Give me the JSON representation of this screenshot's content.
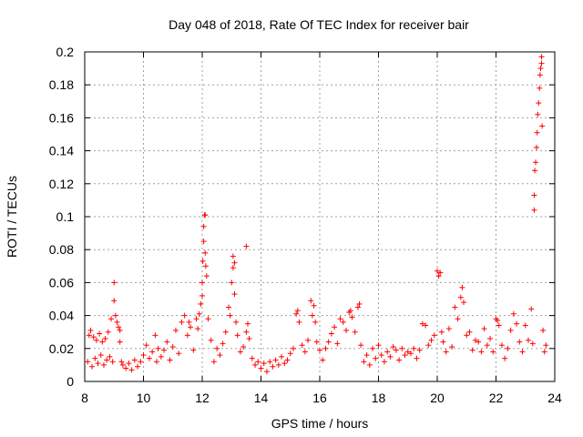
{
  "chart_data": {
    "type": "scatter",
    "title": "Day 048 of 2018, Rate Of TEC Index for receiver bair",
    "xlabel": "GPS time / hours",
    "ylabel": "ROTI / TECUs",
    "xlim": [
      8,
      24
    ],
    "ylim": [
      0,
      0.2
    ],
    "xticks": [
      "8",
      "10",
      "12",
      "14",
      "16",
      "18",
      "20",
      "22",
      "24"
    ],
    "yticks": [
      "0",
      "0.02",
      "0.04",
      "0.06",
      "0.08",
      "0.1",
      "0.12",
      "0.14",
      "0.16",
      "0.18",
      "0.2"
    ],
    "grid": true,
    "marker": "+",
    "color": "#ff0000",
    "series": [
      {
        "name": "ROTI",
        "points": [
          [
            8.1,
            0.012
          ],
          [
            8.15,
            0.028
          ],
          [
            8.2,
            0.031
          ],
          [
            8.25,
            0.009
          ],
          [
            8.3,
            0.027
          ],
          [
            8.35,
            0.014
          ],
          [
            8.4,
            0.025
          ],
          [
            8.45,
            0.011
          ],
          [
            8.5,
            0.029
          ],
          [
            8.55,
            0.016
          ],
          [
            8.6,
            0.024
          ],
          [
            8.65,
            0.01
          ],
          [
            8.7,
            0.026
          ],
          [
            8.75,
            0.013
          ],
          [
            8.8,
            0.03
          ],
          [
            8.85,
            0.015
          ],
          [
            8.9,
            0.038
          ],
          [
            8.95,
            0.012
          ],
          [
            9.0,
            0.06
          ],
          [
            9.0,
            0.049
          ],
          [
            9.05,
            0.04
          ],
          [
            9.1,
            0.036
          ],
          [
            9.15,
            0.033
          ],
          [
            9.2,
            0.031
          ],
          [
            9.2,
            0.024
          ],
          [
            9.25,
            0.012
          ],
          [
            9.3,
            0.01
          ],
          [
            9.4,
            0.008
          ],
          [
            9.5,
            0.011
          ],
          [
            9.6,
            0.007
          ],
          [
            9.7,
            0.013
          ],
          [
            9.8,
            0.009
          ],
          [
            9.9,
            0.012
          ],
          [
            10.0,
            0.016
          ],
          [
            10.1,
            0.022
          ],
          [
            10.2,
            0.014
          ],
          [
            10.3,
            0.018
          ],
          [
            10.4,
            0.028
          ],
          [
            10.45,
            0.012
          ],
          [
            10.5,
            0.02
          ],
          [
            10.6,
            0.015
          ],
          [
            10.7,
            0.019
          ],
          [
            10.8,
            0.024
          ],
          [
            10.9,
            0.013
          ],
          [
            11.0,
            0.021
          ],
          [
            11.1,
            0.031
          ],
          [
            11.2,
            0.017
          ],
          [
            11.3,
            0.036
          ],
          [
            11.4,
            0.04
          ],
          [
            11.5,
            0.028
          ],
          [
            11.55,
            0.036
          ],
          [
            11.6,
            0.033
          ],
          [
            11.7,
            0.019
          ],
          [
            11.8,
            0.038
          ],
          [
            11.85,
            0.032
          ],
          [
            11.9,
            0.041
          ],
          [
            11.95,
            0.047
          ],
          [
            12.0,
            0.052
          ],
          [
            12.0,
            0.06
          ],
          [
            12.02,
            0.073
          ],
          [
            12.05,
            0.085
          ],
          [
            12.05,
            0.094
          ],
          [
            12.08,
            0.101
          ],
          [
            12.1,
            0.101
          ],
          [
            12.1,
            0.078
          ],
          [
            12.12,
            0.07
          ],
          [
            12.15,
            0.064
          ],
          [
            12.2,
            0.038
          ],
          [
            12.3,
            0.025
          ],
          [
            12.4,
            0.012
          ],
          [
            12.5,
            0.02
          ],
          [
            12.6,
            0.016
          ],
          [
            12.7,
            0.023
          ],
          [
            12.8,
            0.03
          ],
          [
            12.9,
            0.045
          ],
          [
            12.95,
            0.04
          ],
          [
            13.0,
            0.06
          ],
          [
            13.05,
            0.069
          ],
          [
            13.05,
            0.076
          ],
          [
            13.1,
            0.072
          ],
          [
            13.1,
            0.053
          ],
          [
            13.15,
            0.036
          ],
          [
            13.2,
            0.028
          ],
          [
            13.3,
            0.018
          ],
          [
            13.4,
            0.021
          ],
          [
            13.5,
            0.03
          ],
          [
            13.5,
            0.082
          ],
          [
            13.55,
            0.035
          ],
          [
            13.6,
            0.026
          ],
          [
            13.7,
            0.014
          ],
          [
            13.8,
            0.01
          ],
          [
            13.9,
            0.012
          ],
          [
            14.0,
            0.008
          ],
          [
            14.1,
            0.011
          ],
          [
            14.2,
            0.006
          ],
          [
            14.3,
            0.012
          ],
          [
            14.4,
            0.009
          ],
          [
            14.5,
            0.013
          ],
          [
            14.6,
            0.01
          ],
          [
            14.7,
            0.015
          ],
          [
            14.8,
            0.011
          ],
          [
            14.9,
            0.013
          ],
          [
            15.0,
            0.017
          ],
          [
            15.1,
            0.02
          ],
          [
            15.2,
            0.041
          ],
          [
            15.25,
            0.043
          ],
          [
            15.3,
            0.036
          ],
          [
            15.4,
            0.022
          ],
          [
            15.5,
            0.018
          ],
          [
            15.6,
            0.025
          ],
          [
            15.7,
            0.049
          ],
          [
            15.75,
            0.04
          ],
          [
            15.8,
            0.046
          ],
          [
            15.85,
            0.036
          ],
          [
            15.9,
            0.024
          ],
          [
            16.0,
            0.019
          ],
          [
            16.1,
            0.013
          ],
          [
            16.2,
            0.02
          ],
          [
            16.3,
            0.024
          ],
          [
            16.4,
            0.029
          ],
          [
            16.5,
            0.033
          ],
          [
            16.6,
            0.023
          ],
          [
            16.7,
            0.038
          ],
          [
            16.8,
            0.036
          ],
          [
            16.9,
            0.031
          ],
          [
            17.0,
            0.042
          ],
          [
            17.05,
            0.043
          ],
          [
            17.1,
            0.039
          ],
          [
            17.2,
            0.03
          ],
          [
            17.3,
            0.045
          ],
          [
            17.35,
            0.047
          ],
          [
            17.4,
            0.022
          ],
          [
            17.5,
            0.012
          ],
          [
            17.6,
            0.016
          ],
          [
            17.7,
            0.01
          ],
          [
            17.8,
            0.02
          ],
          [
            17.9,
            0.014
          ],
          [
            18.0,
            0.022
          ],
          [
            18.1,
            0.016
          ],
          [
            18.2,
            0.012
          ],
          [
            18.3,
            0.018
          ],
          [
            18.4,
            0.015
          ],
          [
            18.5,
            0.021
          ],
          [
            18.6,
            0.019
          ],
          [
            18.7,
            0.013
          ],
          [
            18.8,
            0.02
          ],
          [
            18.9,
            0.016
          ],
          [
            19.0,
            0.018
          ],
          [
            19.1,
            0.017
          ],
          [
            19.2,
            0.02
          ],
          [
            19.3,
            0.014
          ],
          [
            19.4,
            0.019
          ],
          [
            19.5,
            0.035
          ],
          [
            19.6,
            0.034
          ],
          [
            19.7,
            0.022
          ],
          [
            19.8,
            0.025
          ],
          [
            19.9,
            0.028
          ],
          [
            20.0,
            0.067
          ],
          [
            20.05,
            0.064
          ],
          [
            20.1,
            0.066
          ],
          [
            20.15,
            0.03
          ],
          [
            20.2,
            0.024
          ],
          [
            20.3,
            0.018
          ],
          [
            20.4,
            0.032
          ],
          [
            20.5,
            0.021
          ],
          [
            20.6,
            0.045
          ],
          [
            20.7,
            0.038
          ],
          [
            20.8,
            0.051
          ],
          [
            20.85,
            0.057
          ],
          [
            20.9,
            0.048
          ],
          [
            21.0,
            0.028
          ],
          [
            21.1,
            0.03
          ],
          [
            21.2,
            0.019
          ],
          [
            21.3,
            0.025
          ],
          [
            21.4,
            0.024
          ],
          [
            21.5,
            0.018
          ],
          [
            21.6,
            0.032
          ],
          [
            21.7,
            0.022
          ],
          [
            21.8,
            0.026
          ],
          [
            21.9,
            0.018
          ],
          [
            22.0,
            0.038
          ],
          [
            22.05,
            0.037
          ],
          [
            22.1,
            0.034
          ],
          [
            22.2,
            0.022
          ],
          [
            22.3,
            0.014
          ],
          [
            22.4,
            0.02
          ],
          [
            22.5,
            0.031
          ],
          [
            22.6,
            0.041
          ],
          [
            22.7,
            0.035
          ],
          [
            22.8,
            0.024
          ],
          [
            22.9,
            0.018
          ],
          [
            23.0,
            0.034
          ],
          [
            23.1,
            0.025
          ],
          [
            23.2,
            0.044
          ],
          [
            23.25,
            0.023
          ],
          [
            23.3,
            0.104
          ],
          [
            23.3,
            0.113
          ],
          [
            23.32,
            0.128
          ],
          [
            23.35,
            0.133
          ],
          [
            23.38,
            0.142
          ],
          [
            23.4,
            0.151
          ],
          [
            23.42,
            0.162
          ],
          [
            23.45,
            0.169
          ],
          [
            23.48,
            0.178
          ],
          [
            23.5,
            0.186
          ],
          [
            23.52,
            0.19
          ],
          [
            23.55,
            0.197
          ],
          [
            23.55,
            0.193
          ],
          [
            23.57,
            0.155
          ],
          [
            23.6,
            0.031
          ],
          [
            23.65,
            0.018
          ],
          [
            23.7,
            0.022
          ]
        ]
      }
    ]
  }
}
